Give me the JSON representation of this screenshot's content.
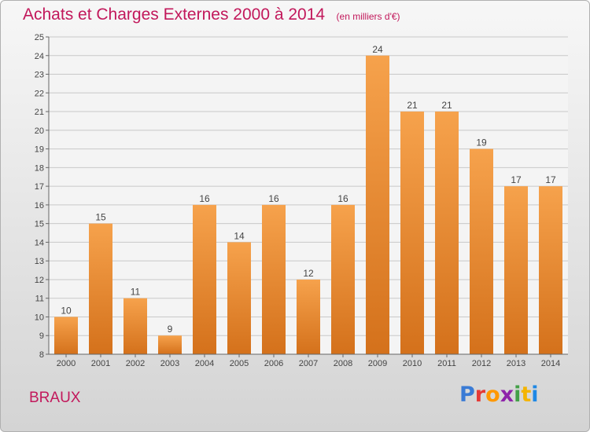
{
  "header": {
    "title": "Achats et Charges Externes 2000 à 2014",
    "subtitle": "(en milliers d'€)"
  },
  "footer": {
    "commune": "BRAUX",
    "brand": "Proxiti",
    "brand_colors": [
      "#3a7bd5",
      "#e53935",
      "#ff9800",
      "#8e24aa",
      "#43a047",
      "#f4b400",
      "#1e88e5"
    ]
  },
  "colors": {
    "bar_top": "#f6a24c",
    "bar_bottom": "#d4711b",
    "accent": "#c2185b",
    "grid": "#c8c8c8"
  },
  "chart_data": {
    "type": "bar",
    "title": "Achats et Charges Externes 2000 à 2014",
    "subtitle": "(en milliers d'€)",
    "xlabel": "",
    "ylabel": "",
    "categories": [
      "2000",
      "2001",
      "2002",
      "2003",
      "2004",
      "2005",
      "2006",
      "2007",
      "2008",
      "2009",
      "2010",
      "2011",
      "2012",
      "2013",
      "2014"
    ],
    "values": [
      10,
      15,
      11,
      9,
      16,
      14,
      16,
      12,
      16,
      24,
      21,
      21,
      19,
      17,
      17
    ],
    "ylim": [
      8,
      25
    ],
    "yticks": [
      8,
      9,
      10,
      11,
      12,
      13,
      14,
      15,
      16,
      17,
      18,
      19,
      20,
      21,
      22,
      23,
      24,
      25
    ],
    "grid": true,
    "data_labels": true,
    "legend": "none"
  }
}
